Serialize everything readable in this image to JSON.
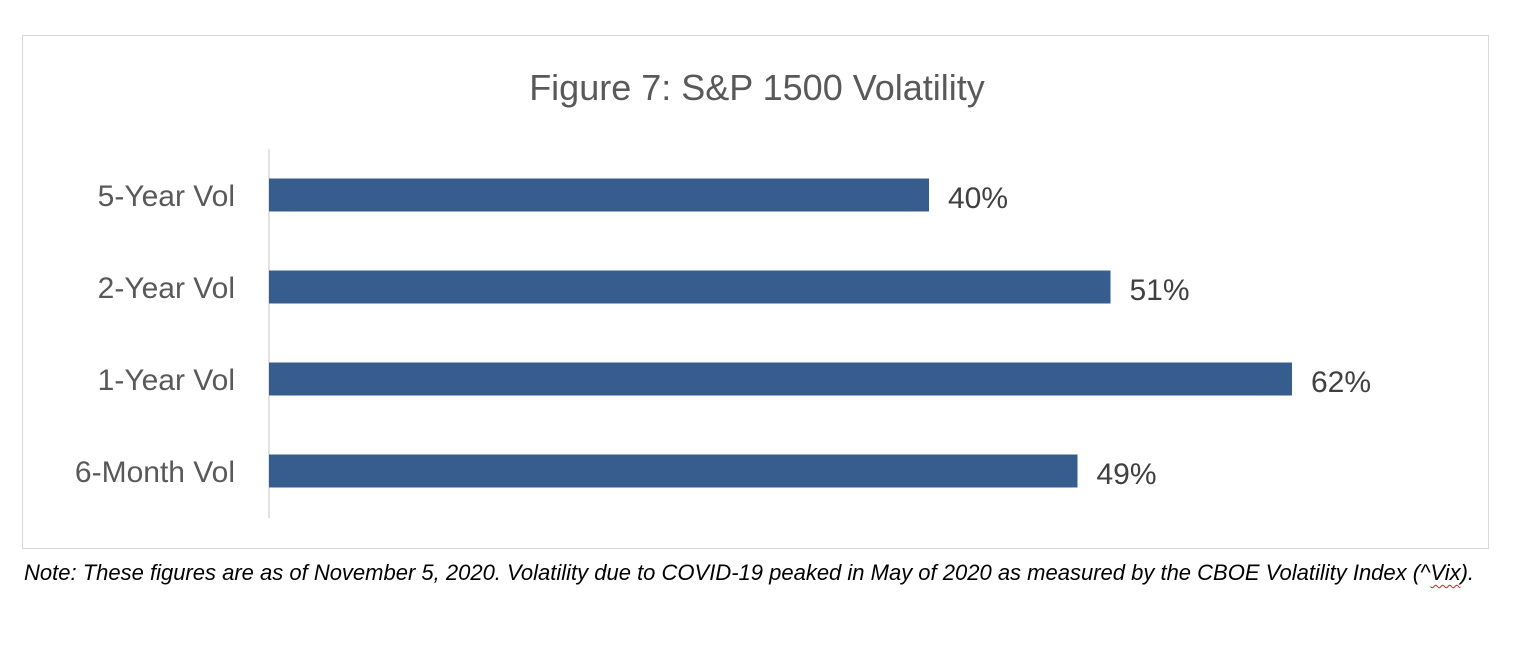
{
  "chart_data": {
    "type": "bar",
    "orientation": "horizontal",
    "title": "Figure 7: S&P 1500 Volatility",
    "categories": [
      "5-Year Vol",
      "2-Year Vol",
      "1-Year Vol",
      "6-Month Vol"
    ],
    "values": [
      40,
      51,
      62,
      49
    ],
    "value_labels": [
      "40%",
      "51%",
      "62%",
      "49%"
    ],
    "unit": "%",
    "xlim": [
      0,
      64
    ],
    "bar_color": "#375d8f",
    "axis_color": "#d9d9d9",
    "grid": false,
    "legend": "none"
  },
  "note": {
    "prefix": "Note: These figures are as of November 5, 2020. Volatility due to COVID-19 peaked in May of 2020 as measured by the CBOE Volatility Index (^",
    "flagged_word": "Vix",
    "suffix": ")."
  }
}
